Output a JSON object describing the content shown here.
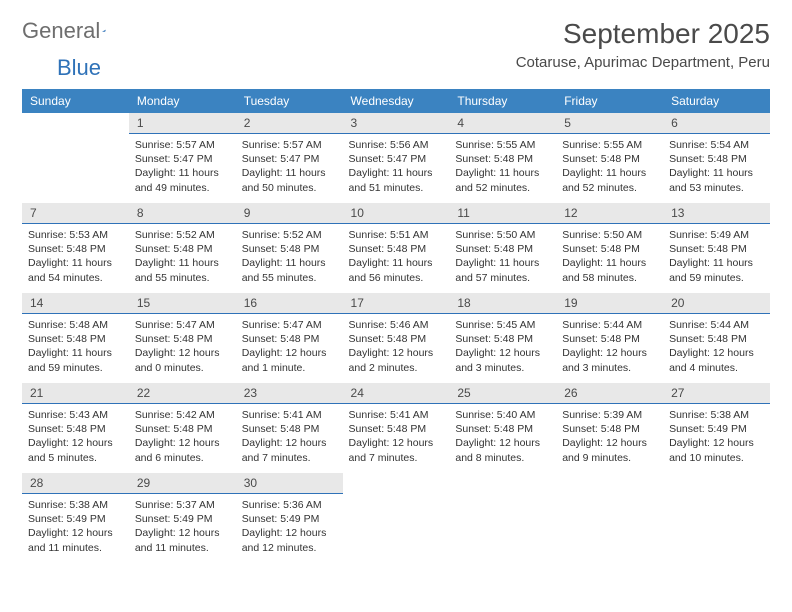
{
  "logo": {
    "text_general": "General",
    "text_blue": "Blue"
  },
  "title": "September 2025",
  "location": "Cotaruse, Apurimac Department, Peru",
  "colors": {
    "header_bg": "#3b83c1",
    "header_text": "#ffffff",
    "daynum_bg": "#e8e8e8",
    "daynum_border": "#2f72b8",
    "body_text": "#333333",
    "title_text": "#4a4a4a",
    "logo_grey": "#6e6e6e",
    "logo_blue": "#2f72b8"
  },
  "weekdays": [
    "Sunday",
    "Monday",
    "Tuesday",
    "Wednesday",
    "Thursday",
    "Friday",
    "Saturday"
  ],
  "weeks": [
    [
      null,
      {
        "n": "1",
        "sunrise": "5:57 AM",
        "sunset": "5:47 PM",
        "daylight": "11 hours and 49 minutes."
      },
      {
        "n": "2",
        "sunrise": "5:57 AM",
        "sunset": "5:47 PM",
        "daylight": "11 hours and 50 minutes."
      },
      {
        "n": "3",
        "sunrise": "5:56 AM",
        "sunset": "5:47 PM",
        "daylight": "11 hours and 51 minutes."
      },
      {
        "n": "4",
        "sunrise": "5:55 AM",
        "sunset": "5:48 PM",
        "daylight": "11 hours and 52 minutes."
      },
      {
        "n": "5",
        "sunrise": "5:55 AM",
        "sunset": "5:48 PM",
        "daylight": "11 hours and 52 minutes."
      },
      {
        "n": "6",
        "sunrise": "5:54 AM",
        "sunset": "5:48 PM",
        "daylight": "11 hours and 53 minutes."
      }
    ],
    [
      {
        "n": "7",
        "sunrise": "5:53 AM",
        "sunset": "5:48 PM",
        "daylight": "11 hours and 54 minutes."
      },
      {
        "n": "8",
        "sunrise": "5:52 AM",
        "sunset": "5:48 PM",
        "daylight": "11 hours and 55 minutes."
      },
      {
        "n": "9",
        "sunrise": "5:52 AM",
        "sunset": "5:48 PM",
        "daylight": "11 hours and 55 minutes."
      },
      {
        "n": "10",
        "sunrise": "5:51 AM",
        "sunset": "5:48 PM",
        "daylight": "11 hours and 56 minutes."
      },
      {
        "n": "11",
        "sunrise": "5:50 AM",
        "sunset": "5:48 PM",
        "daylight": "11 hours and 57 minutes."
      },
      {
        "n": "12",
        "sunrise": "5:50 AM",
        "sunset": "5:48 PM",
        "daylight": "11 hours and 58 minutes."
      },
      {
        "n": "13",
        "sunrise": "5:49 AM",
        "sunset": "5:48 PM",
        "daylight": "11 hours and 59 minutes."
      }
    ],
    [
      {
        "n": "14",
        "sunrise": "5:48 AM",
        "sunset": "5:48 PM",
        "daylight": "11 hours and 59 minutes."
      },
      {
        "n": "15",
        "sunrise": "5:47 AM",
        "sunset": "5:48 PM",
        "daylight": "12 hours and 0 minutes."
      },
      {
        "n": "16",
        "sunrise": "5:47 AM",
        "sunset": "5:48 PM",
        "daylight": "12 hours and 1 minute."
      },
      {
        "n": "17",
        "sunrise": "5:46 AM",
        "sunset": "5:48 PM",
        "daylight": "12 hours and 2 minutes."
      },
      {
        "n": "18",
        "sunrise": "5:45 AM",
        "sunset": "5:48 PM",
        "daylight": "12 hours and 3 minutes."
      },
      {
        "n": "19",
        "sunrise": "5:44 AM",
        "sunset": "5:48 PM",
        "daylight": "12 hours and 3 minutes."
      },
      {
        "n": "20",
        "sunrise": "5:44 AM",
        "sunset": "5:48 PM",
        "daylight": "12 hours and 4 minutes."
      }
    ],
    [
      {
        "n": "21",
        "sunrise": "5:43 AM",
        "sunset": "5:48 PM",
        "daylight": "12 hours and 5 minutes."
      },
      {
        "n": "22",
        "sunrise": "5:42 AM",
        "sunset": "5:48 PM",
        "daylight": "12 hours and 6 minutes."
      },
      {
        "n": "23",
        "sunrise": "5:41 AM",
        "sunset": "5:48 PM",
        "daylight": "12 hours and 7 minutes."
      },
      {
        "n": "24",
        "sunrise": "5:41 AM",
        "sunset": "5:48 PM",
        "daylight": "12 hours and 7 minutes."
      },
      {
        "n": "25",
        "sunrise": "5:40 AM",
        "sunset": "5:48 PM",
        "daylight": "12 hours and 8 minutes."
      },
      {
        "n": "26",
        "sunrise": "5:39 AM",
        "sunset": "5:48 PM",
        "daylight": "12 hours and 9 minutes."
      },
      {
        "n": "27",
        "sunrise": "5:38 AM",
        "sunset": "5:49 PM",
        "daylight": "12 hours and 10 minutes."
      }
    ],
    [
      {
        "n": "28",
        "sunrise": "5:38 AM",
        "sunset": "5:49 PM",
        "daylight": "12 hours and 11 minutes."
      },
      {
        "n": "29",
        "sunrise": "5:37 AM",
        "sunset": "5:49 PM",
        "daylight": "12 hours and 11 minutes."
      },
      {
        "n": "30",
        "sunrise": "5:36 AM",
        "sunset": "5:49 PM",
        "daylight": "12 hours and 12 minutes."
      },
      null,
      null,
      null,
      null
    ]
  ],
  "labels": {
    "sunrise": "Sunrise:",
    "sunset": "Sunset:",
    "daylight": "Daylight:"
  }
}
